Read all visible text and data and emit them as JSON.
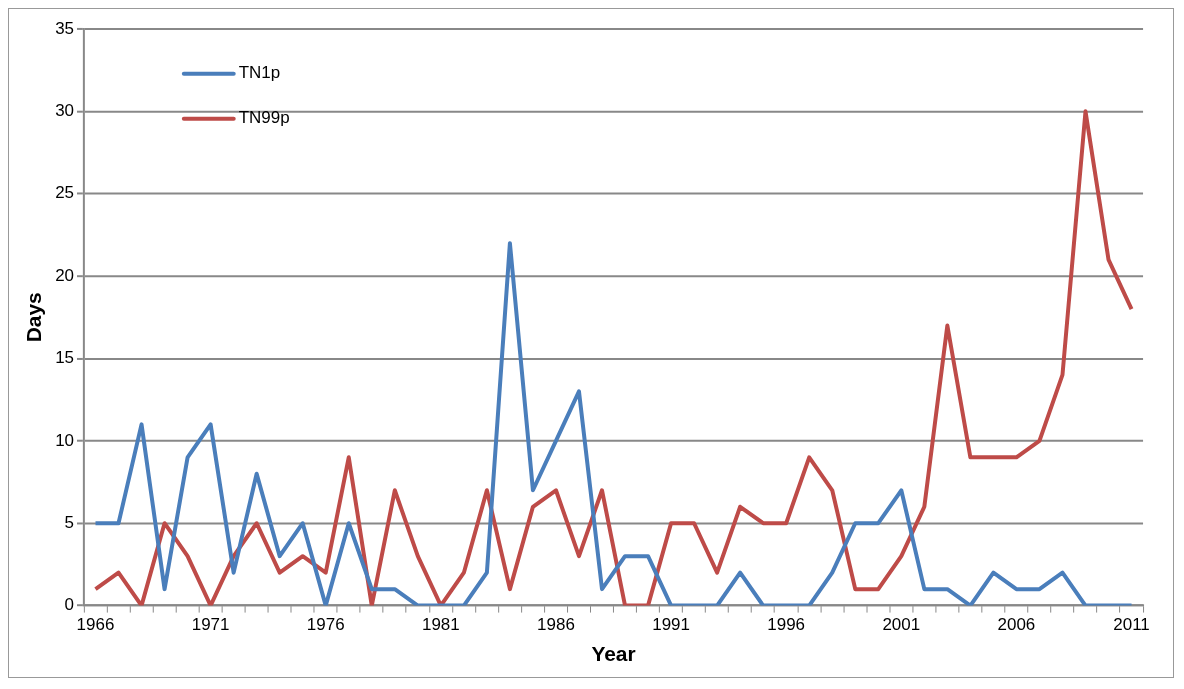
{
  "chart_data": {
    "type": "line",
    "xlabel": "Year",
    "ylabel": "Days",
    "categories": [
      "1966",
      null,
      null,
      null,
      null,
      "1971",
      null,
      null,
      null,
      null,
      "1976",
      null,
      null,
      null,
      null,
      "1981",
      null,
      null,
      null,
      null,
      "1986",
      null,
      null,
      null,
      null,
      "1991",
      null,
      null,
      null,
      null,
      "1996",
      null,
      null,
      null,
      null,
      "2001",
      null,
      null,
      null,
      null,
      "2006",
      null,
      null,
      null,
      null,
      "2011"
    ],
    "series": [
      {
        "name": "TN1p",
        "color": "#4a7ebb",
        "values": [
          5,
          5,
          11,
          1,
          9,
          11,
          2,
          8,
          3,
          5,
          0,
          5,
          1,
          1,
          0,
          0,
          0,
          2,
          22,
          7,
          10,
          13,
          1,
          3,
          3,
          0,
          0,
          0,
          2,
          0,
          0,
          0,
          2,
          5,
          5,
          7,
          1,
          1,
          0,
          2,
          1,
          1,
          2,
          0,
          0,
          0
        ]
      },
      {
        "name": "TN99p",
        "color": "#be4b48",
        "values": [
          1,
          2,
          0,
          5,
          3,
          0,
          3,
          5,
          2,
          3,
          2,
          9,
          0,
          7,
          3,
          0,
          2,
          7,
          1,
          6,
          7,
          3,
          7,
          0,
          0,
          5,
          5,
          2,
          6,
          5,
          5,
          9,
          7,
          1,
          1,
          3,
          6,
          17,
          9,
          9,
          9,
          10,
          14,
          30,
          21,
          18
        ]
      }
    ],
    "ylim": [
      0,
      35
    ],
    "yticks": [
      0,
      5,
      10,
      15,
      20,
      25,
      30,
      35
    ],
    "grid": "y",
    "legend": "top left",
    "marker": "none",
    "line_style": "solid"
  }
}
